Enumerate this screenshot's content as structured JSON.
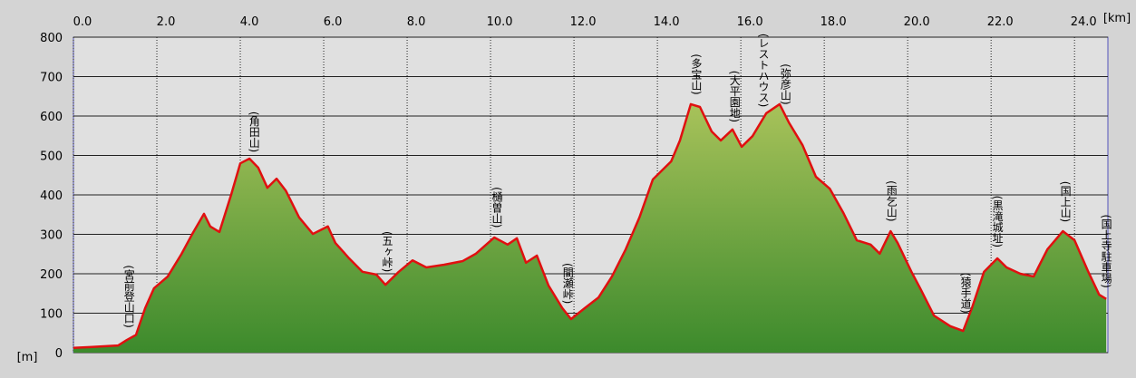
{
  "chart_data": {
    "type": "area",
    "x_unit": "[km]",
    "y_unit": "[m]",
    "x": [
      0,
      0.4,
      1.07,
      1.28,
      1.5,
      1.72,
      1.93,
      2.26,
      2.59,
      2.85,
      3.13,
      3.28,
      3.5,
      3.78,
      4.0,
      4.22,
      4.43,
      4.65,
      4.87,
      5.09,
      5.41,
      5.74,
      6.1,
      6.28,
      6.61,
      6.93,
      7.26,
      7.48,
      7.8,
      8.13,
      8.46,
      8.89,
      9.33,
      9.65,
      10.09,
      10.41,
      10.63,
      10.85,
      11.11,
      11.39,
      11.72,
      11.93,
      12.26,
      12.59,
      12.91,
      13.24,
      13.57,
      13.89,
      14.33,
      14.54,
      14.8,
      15.02,
      15.3,
      15.52,
      15.8,
      16.02,
      16.28,
      16.61,
      16.93,
      17.15,
      17.48,
      17.8,
      18.13,
      18.46,
      18.78,
      19.11,
      19.33,
      19.59,
      19.76,
      20.09,
      20.3,
      20.63,
      21.02,
      21.33,
      21.54,
      21.83,
      22.15,
      22.37,
      22.7,
      23.02,
      23.35,
      23.72,
      24.0,
      24.33,
      24.59,
      24.76
    ],
    "values": [
      12,
      14,
      18,
      32,
      45,
      113,
      163,
      193,
      250,
      301,
      352,
      320,
      306,
      400,
      480,
      492,
      469,
      418,
      441,
      411,
      343,
      301,
      320,
      278,
      239,
      205,
      198,
      172,
      205,
      234,
      216,
      223,
      232,
      251,
      292,
      274,
      290,
      228,
      246,
      170,
      113,
      85,
      113,
      140,
      193,
      262,
      343,
      439,
      485,
      538,
      630,
      623,
      561,
      538,
      566,
      522,
      549,
      607,
      630,
      584,
      526,
      446,
      416,
      354,
      285,
      274,
      251,
      308,
      278,
      205,
      163,
      94,
      67,
      55,
      113,
      205,
      239,
      216,
      200,
      193,
      262,
      308,
      285,
      205,
      147,
      136
    ],
    "color": "#e01010",
    "xlim": [
      0,
      24.8
    ],
    "ylim": [
      0,
      800
    ],
    "xticks": [
      {
        "value": 0,
        "label": "0.0"
      },
      {
        "value": 2,
        "label": "2.0"
      },
      {
        "value": 4,
        "label": "4.0"
      },
      {
        "value": 6,
        "label": "6.0"
      },
      {
        "value": 8,
        "label": "8.0"
      },
      {
        "value": 10,
        "label": "10.0"
      },
      {
        "value": 12,
        "label": "12.0"
      },
      {
        "value": 14,
        "label": "14.0"
      },
      {
        "value": 16,
        "label": "16.0"
      },
      {
        "value": 18,
        "label": "18.0"
      },
      {
        "value": 20,
        "label": "20.0"
      },
      {
        "value": 22,
        "label": "22.0"
      },
      {
        "value": 24,
        "label": "24.0"
      }
    ],
    "yticks": [
      0,
      100,
      200,
      300,
      400,
      500,
      600,
      700,
      800
    ],
    "grid": true,
    "annotations": [
      {
        "x": 1.33,
        "label": "(宮前登山口)"
      },
      {
        "x": 4.33,
        "label": "(角田山)"
      },
      {
        "x": 7.52,
        "label": "(五ヶ峠)"
      },
      {
        "x": 10.15,
        "label": "(樋曽山)"
      },
      {
        "x": 11.85,
        "label": "(間瀬峠)"
      },
      {
        "x": 14.93,
        "label": "(多宝山)"
      },
      {
        "x": 15.85,
        "label": "(大平園地)"
      },
      {
        "x": 16.54,
        "label": "(レストハウス)"
      },
      {
        "x": 17.07,
        "label": "(弥彦山)"
      },
      {
        "x": 19.61,
        "label": "(雨乞山)"
      },
      {
        "x": 21.39,
        "label": "(猿手道)"
      },
      {
        "x": 22.15,
        "label": "(黒滝城址)"
      },
      {
        "x": 23.78,
        "label": "(国上山)"
      },
      {
        "x": 24.76,
        "label": "(国上寺駐車場)"
      }
    ]
  }
}
